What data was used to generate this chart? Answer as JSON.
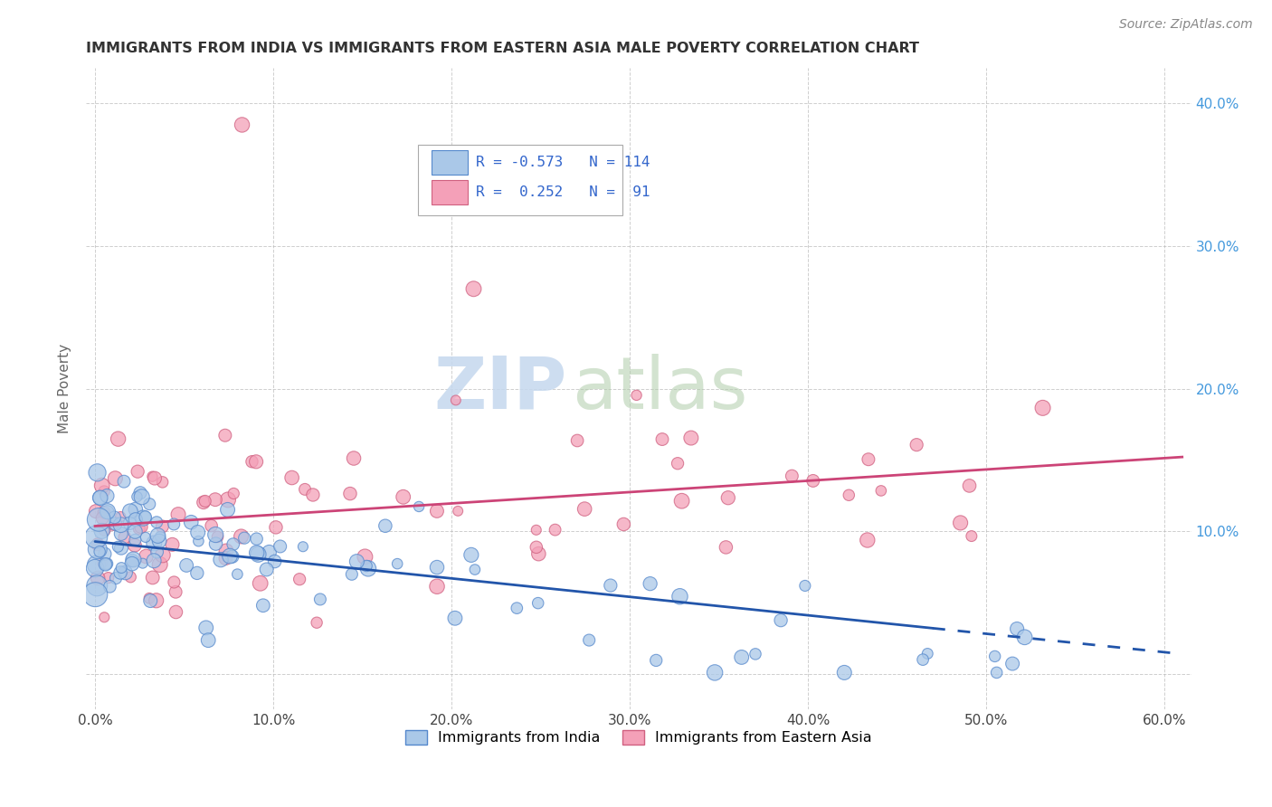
{
  "title": "IMMIGRANTS FROM INDIA VS IMMIGRANTS FROM EASTERN ASIA MALE POVERTY CORRELATION CHART",
  "source": "Source: ZipAtlas.com",
  "ylabel": "Male Poverty",
  "xlim": [
    -0.005,
    0.615
  ],
  "ylim": [
    -0.025,
    0.425
  ],
  "xticks": [
    0.0,
    0.1,
    0.2,
    0.3,
    0.4,
    0.5,
    0.6
  ],
  "yticks": [
    0.0,
    0.1,
    0.2,
    0.3,
    0.4
  ],
  "xtick_labels": [
    "0.0%",
    "10.0%",
    "20.0%",
    "30.0%",
    "40.0%",
    "50.0%",
    "60.0%"
  ],
  "right_ytick_labels": [
    "",
    "10.0%",
    "20.0%",
    "30.0%",
    "40.0%"
  ],
  "india_color": "#aac8e8",
  "india_edge_color": "#5588cc",
  "eastern_asia_color": "#f4a0b8",
  "eastern_asia_edge_color": "#d06080",
  "india_R": -0.573,
  "india_N": 114,
  "eastern_asia_R": 0.252,
  "eastern_asia_N": 91,
  "india_line_color": "#2255aa",
  "eastern_asia_line_color": "#cc4477",
  "watermark_ZIP_color": "#c5d8ee",
  "watermark_atlas_color": "#b0ccaa",
  "background_color": "#ffffff",
  "grid_color": "#bbbbbb",
  "legend_R_color": "#3366cc",
  "title_color": "#333333",
  "source_color": "#888888"
}
